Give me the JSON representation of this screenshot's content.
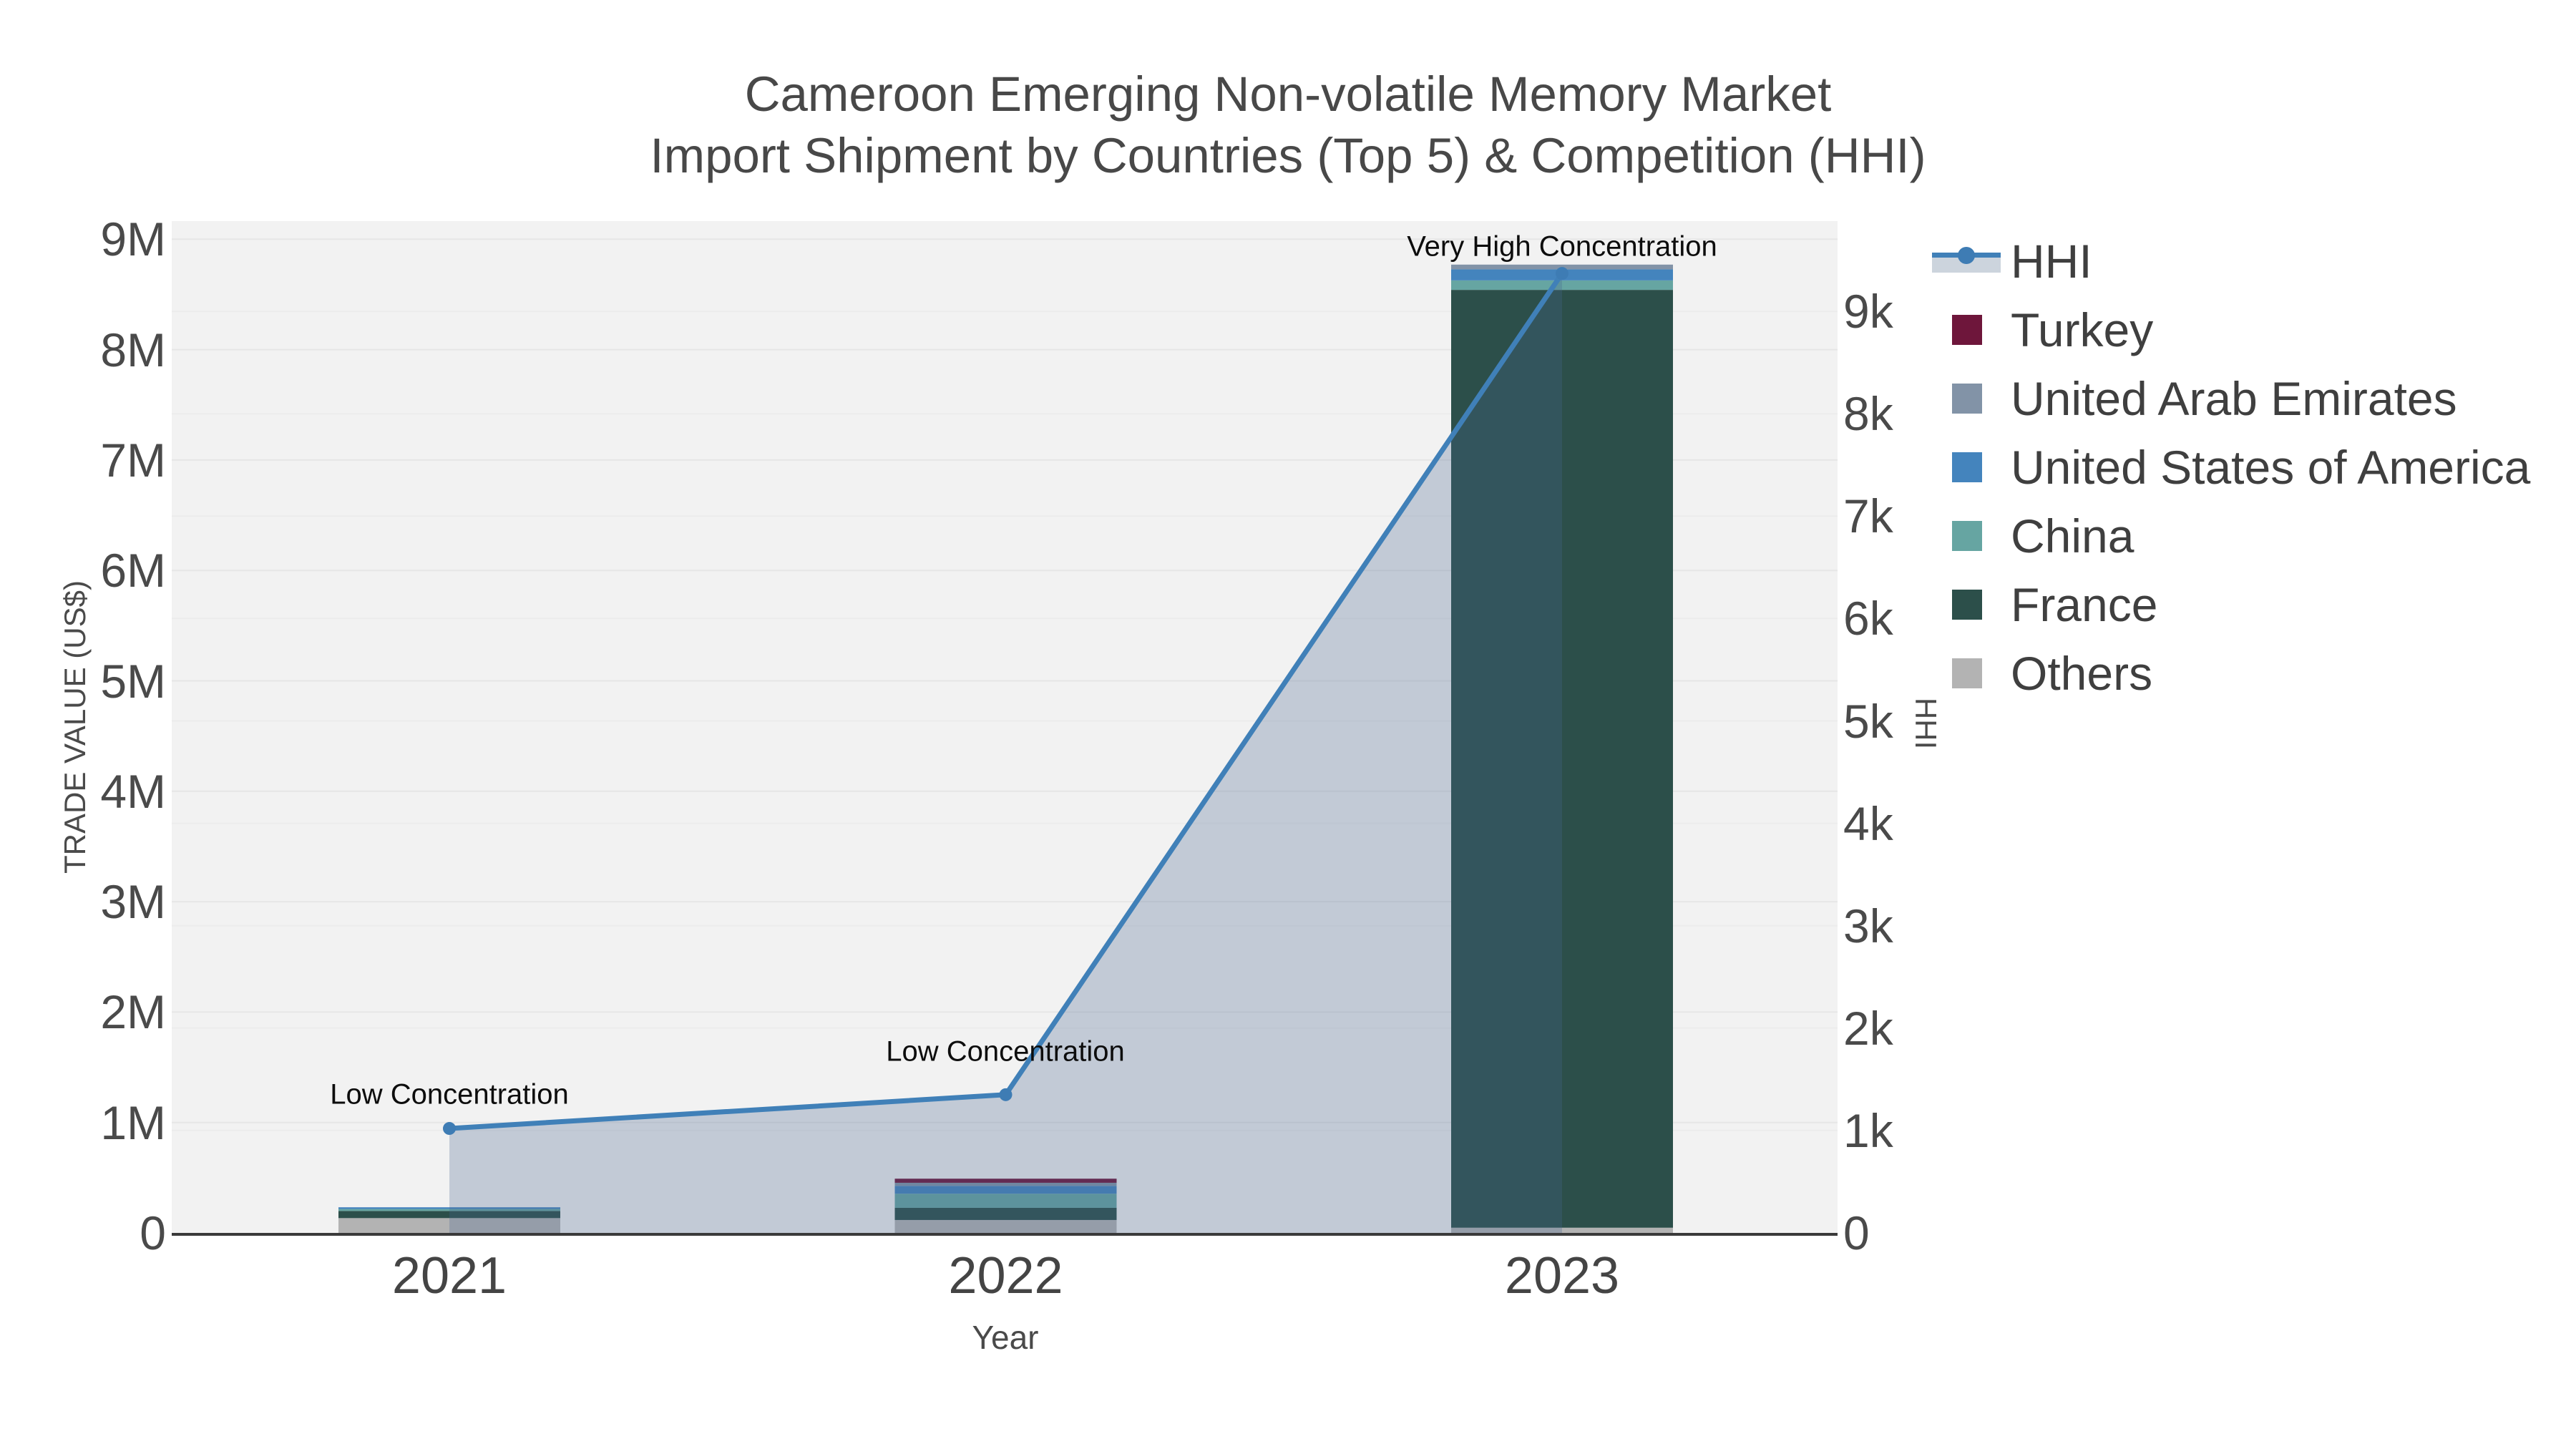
{
  "title": {
    "line1": "Cameroon Emerging Non-volatile Memory Market",
    "line2": "Import Shipment by Countries (Top 5) & Competition (HHI)"
  },
  "axes": {
    "x_title": "Year",
    "y_left_title": "TRADE VALUE (US$)",
    "y_right_title": "HHI",
    "x_ticks": [
      "2021",
      "2022",
      "2023"
    ],
    "y_left_ticks": [
      "0",
      "1M",
      "2M",
      "3M",
      "4M",
      "5M",
      "6M",
      "7M",
      "8M",
      "9M"
    ],
    "y_right_ticks": [
      "0",
      "1k",
      "2k",
      "3k",
      "4k",
      "5k",
      "6k",
      "7k",
      "8k",
      "9k"
    ]
  },
  "legend": {
    "items": [
      {
        "label": "HHI",
        "type": "line",
        "color": "#4080b8"
      },
      {
        "label": "Turkey",
        "type": "swatch",
        "color": "#6e163b"
      },
      {
        "label": "United Arab Emirates",
        "type": "swatch",
        "color": "#8293a7"
      },
      {
        "label": "United States of America",
        "type": "swatch",
        "color": "#4484bd"
      },
      {
        "label": "China",
        "type": "swatch",
        "color": "#66a5a2"
      },
      {
        "label": "France",
        "type": "swatch",
        "color": "#2c4f4a"
      },
      {
        "label": "Others",
        "type": "swatch",
        "color": "#b3b3b3"
      }
    ]
  },
  "annotations": [
    {
      "text": "Low Concentration",
      "year": "2021"
    },
    {
      "text": "Low Concentration",
      "year": "2022"
    },
    {
      "text": "Very High Concentration",
      "year": "2023"
    }
  ],
  "chart_data": {
    "type": "combo (stacked bar + line)",
    "categories": [
      "2021",
      "2022",
      "2023"
    ],
    "bar_unit": "US$",
    "series": [
      {
        "name": "Turkey",
        "color": "#6e163b",
        "values": [
          0,
          37000,
          0
        ]
      },
      {
        "name": "United Arab Emirates",
        "color": "#8293a7",
        "values": [
          0,
          28000,
          43000
        ]
      },
      {
        "name": "United States of America",
        "color": "#4484bd",
        "values": [
          15500,
          71000,
          100000
        ]
      },
      {
        "name": "China",
        "color": "#66a5a2",
        "values": [
          17500,
          128000,
          86000
        ]
      },
      {
        "name": "France",
        "color": "#2c4f4a",
        "values": [
          65000,
          110000,
          8494000
        ]
      },
      {
        "name": "Others",
        "color": "#b3b3b3",
        "values": [
          134000,
          117000,
          47000
        ]
      }
    ],
    "stack_order_bottom_to_top": [
      "Others",
      "France",
      "China",
      "United States of America",
      "United Arab Emirates",
      "Turkey"
    ],
    "line_series": {
      "name": "HHI",
      "color": "#4080b8",
      "fill_color": "rgba(72,102,142,0.28)",
      "values": [
        1020,
        1350,
        9370
      ]
    },
    "title": "Cameroon Emerging Non-volatile Memory Market Import Shipment by Countries (Top 5) & Competition (HHI)",
    "xlabel": "Year",
    "ylabel_left": "TRADE VALUE (US$)",
    "ylabel_right": "HHI",
    "ylim_left": [
      0,
      9200000
    ],
    "ylim_right": [
      0,
      9940
    ],
    "grid": true,
    "legend_position": "right",
    "plot_bg": "#f2f2f2"
  }
}
